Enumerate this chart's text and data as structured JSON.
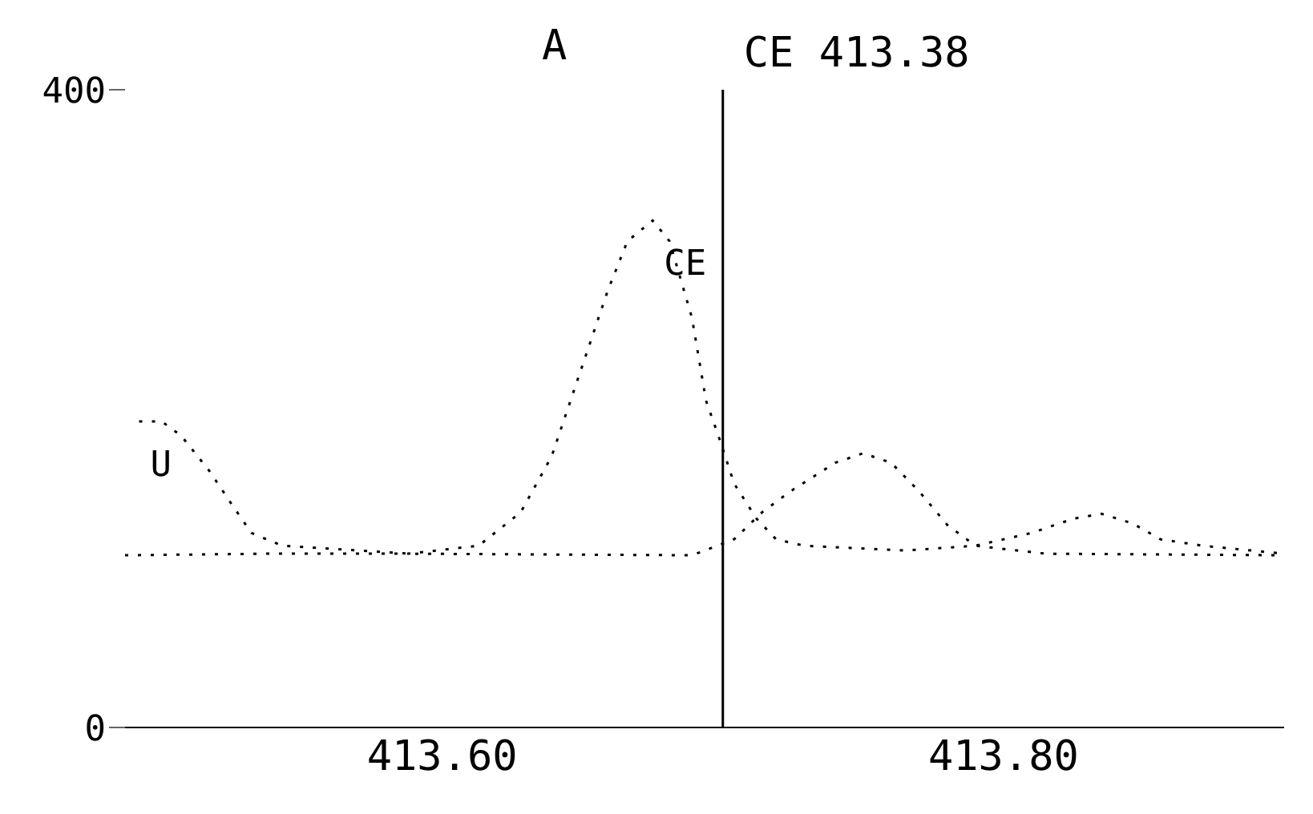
{
  "chart_data": {
    "type": "line",
    "title": "A",
    "xlim": [
      413.487,
      413.9
    ],
    "ylim": [
      0,
      400
    ],
    "xticks": [
      {
        "value": 413.6,
        "label": "413.60"
      },
      {
        "value": 413.8,
        "label": "413.80"
      }
    ],
    "yticks": [
      0,
      400
    ],
    "grid": false,
    "legend": false,
    "marker": "none",
    "line_style": "dotted",
    "ref_lines": [
      {
        "axis": "x",
        "value": 413.7,
        "label": "CE 413.38",
        "color": "#000000",
        "line_style": "solid"
      }
    ],
    "series": [
      {
        "name": "CE",
        "color": "#000000",
        "x": [
          413.487,
          413.538,
          413.588,
          413.613,
          413.628,
          413.639,
          413.649,
          413.659,
          413.666,
          413.675,
          413.681,
          413.689,
          413.694,
          413.699,
          413.704,
          413.712,
          413.719,
          413.729,
          413.765,
          413.79,
          413.81,
          413.825,
          413.835,
          413.846,
          413.856,
          413.871,
          413.9
        ],
        "values": [
          108,
          109,
          109,
          114,
          135,
          170,
          222,
          274,
          305,
          318,
          305,
          257,
          205,
          180,
          153,
          131,
          118,
          114,
          111,
          114,
          122,
          131,
          134,
          128,
          118,
          114,
          109
        ]
      },
      {
        "name": "U",
        "color": "#000000",
        "x": [
          413.492,
          413.5,
          413.507,
          413.517,
          413.525,
          413.532,
          413.543,
          413.588,
          413.689,
          413.704,
          413.714,
          413.724,
          413.74,
          413.75,
          413.76,
          413.77,
          413.78,
          413.79,
          413.815,
          413.9
        ],
        "values": [
          192,
          192,
          183,
          161,
          140,
          122,
          114,
          109,
          108,
          118,
          135,
          148,
          166,
          172,
          166,
          148,
          127,
          114,
          109,
          108
        ]
      }
    ]
  }
}
